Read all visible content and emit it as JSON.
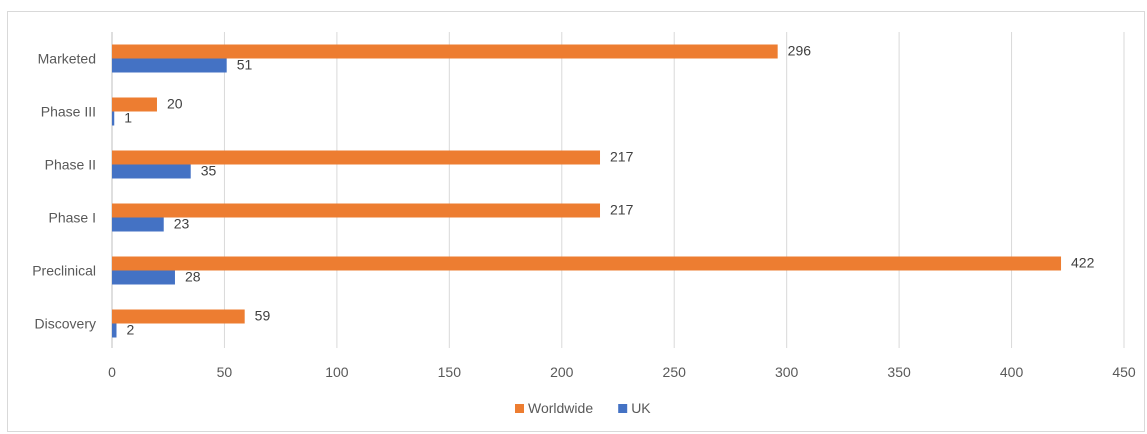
{
  "chart_data": {
    "type": "bar",
    "orientation": "horizontal",
    "categories": [
      "Marketed",
      "Phase III",
      "Phase II",
      "Phase I",
      "Preclinical",
      "Discovery"
    ],
    "series": [
      {
        "name": "Worldwide",
        "color": "#ED7D31",
        "values": [
          296,
          20,
          217,
          217,
          422,
          59
        ]
      },
      {
        "name": "UK",
        "color": "#4472C4",
        "values": [
          51,
          1,
          35,
          23,
          28,
          2
        ]
      }
    ],
    "xlim": [
      0,
      450
    ],
    "xticks": [
      "0",
      "50",
      "100",
      "150",
      "200",
      "250",
      "300",
      "350",
      "400",
      "450"
    ],
    "grid": true,
    "legend_position": "bottom"
  }
}
